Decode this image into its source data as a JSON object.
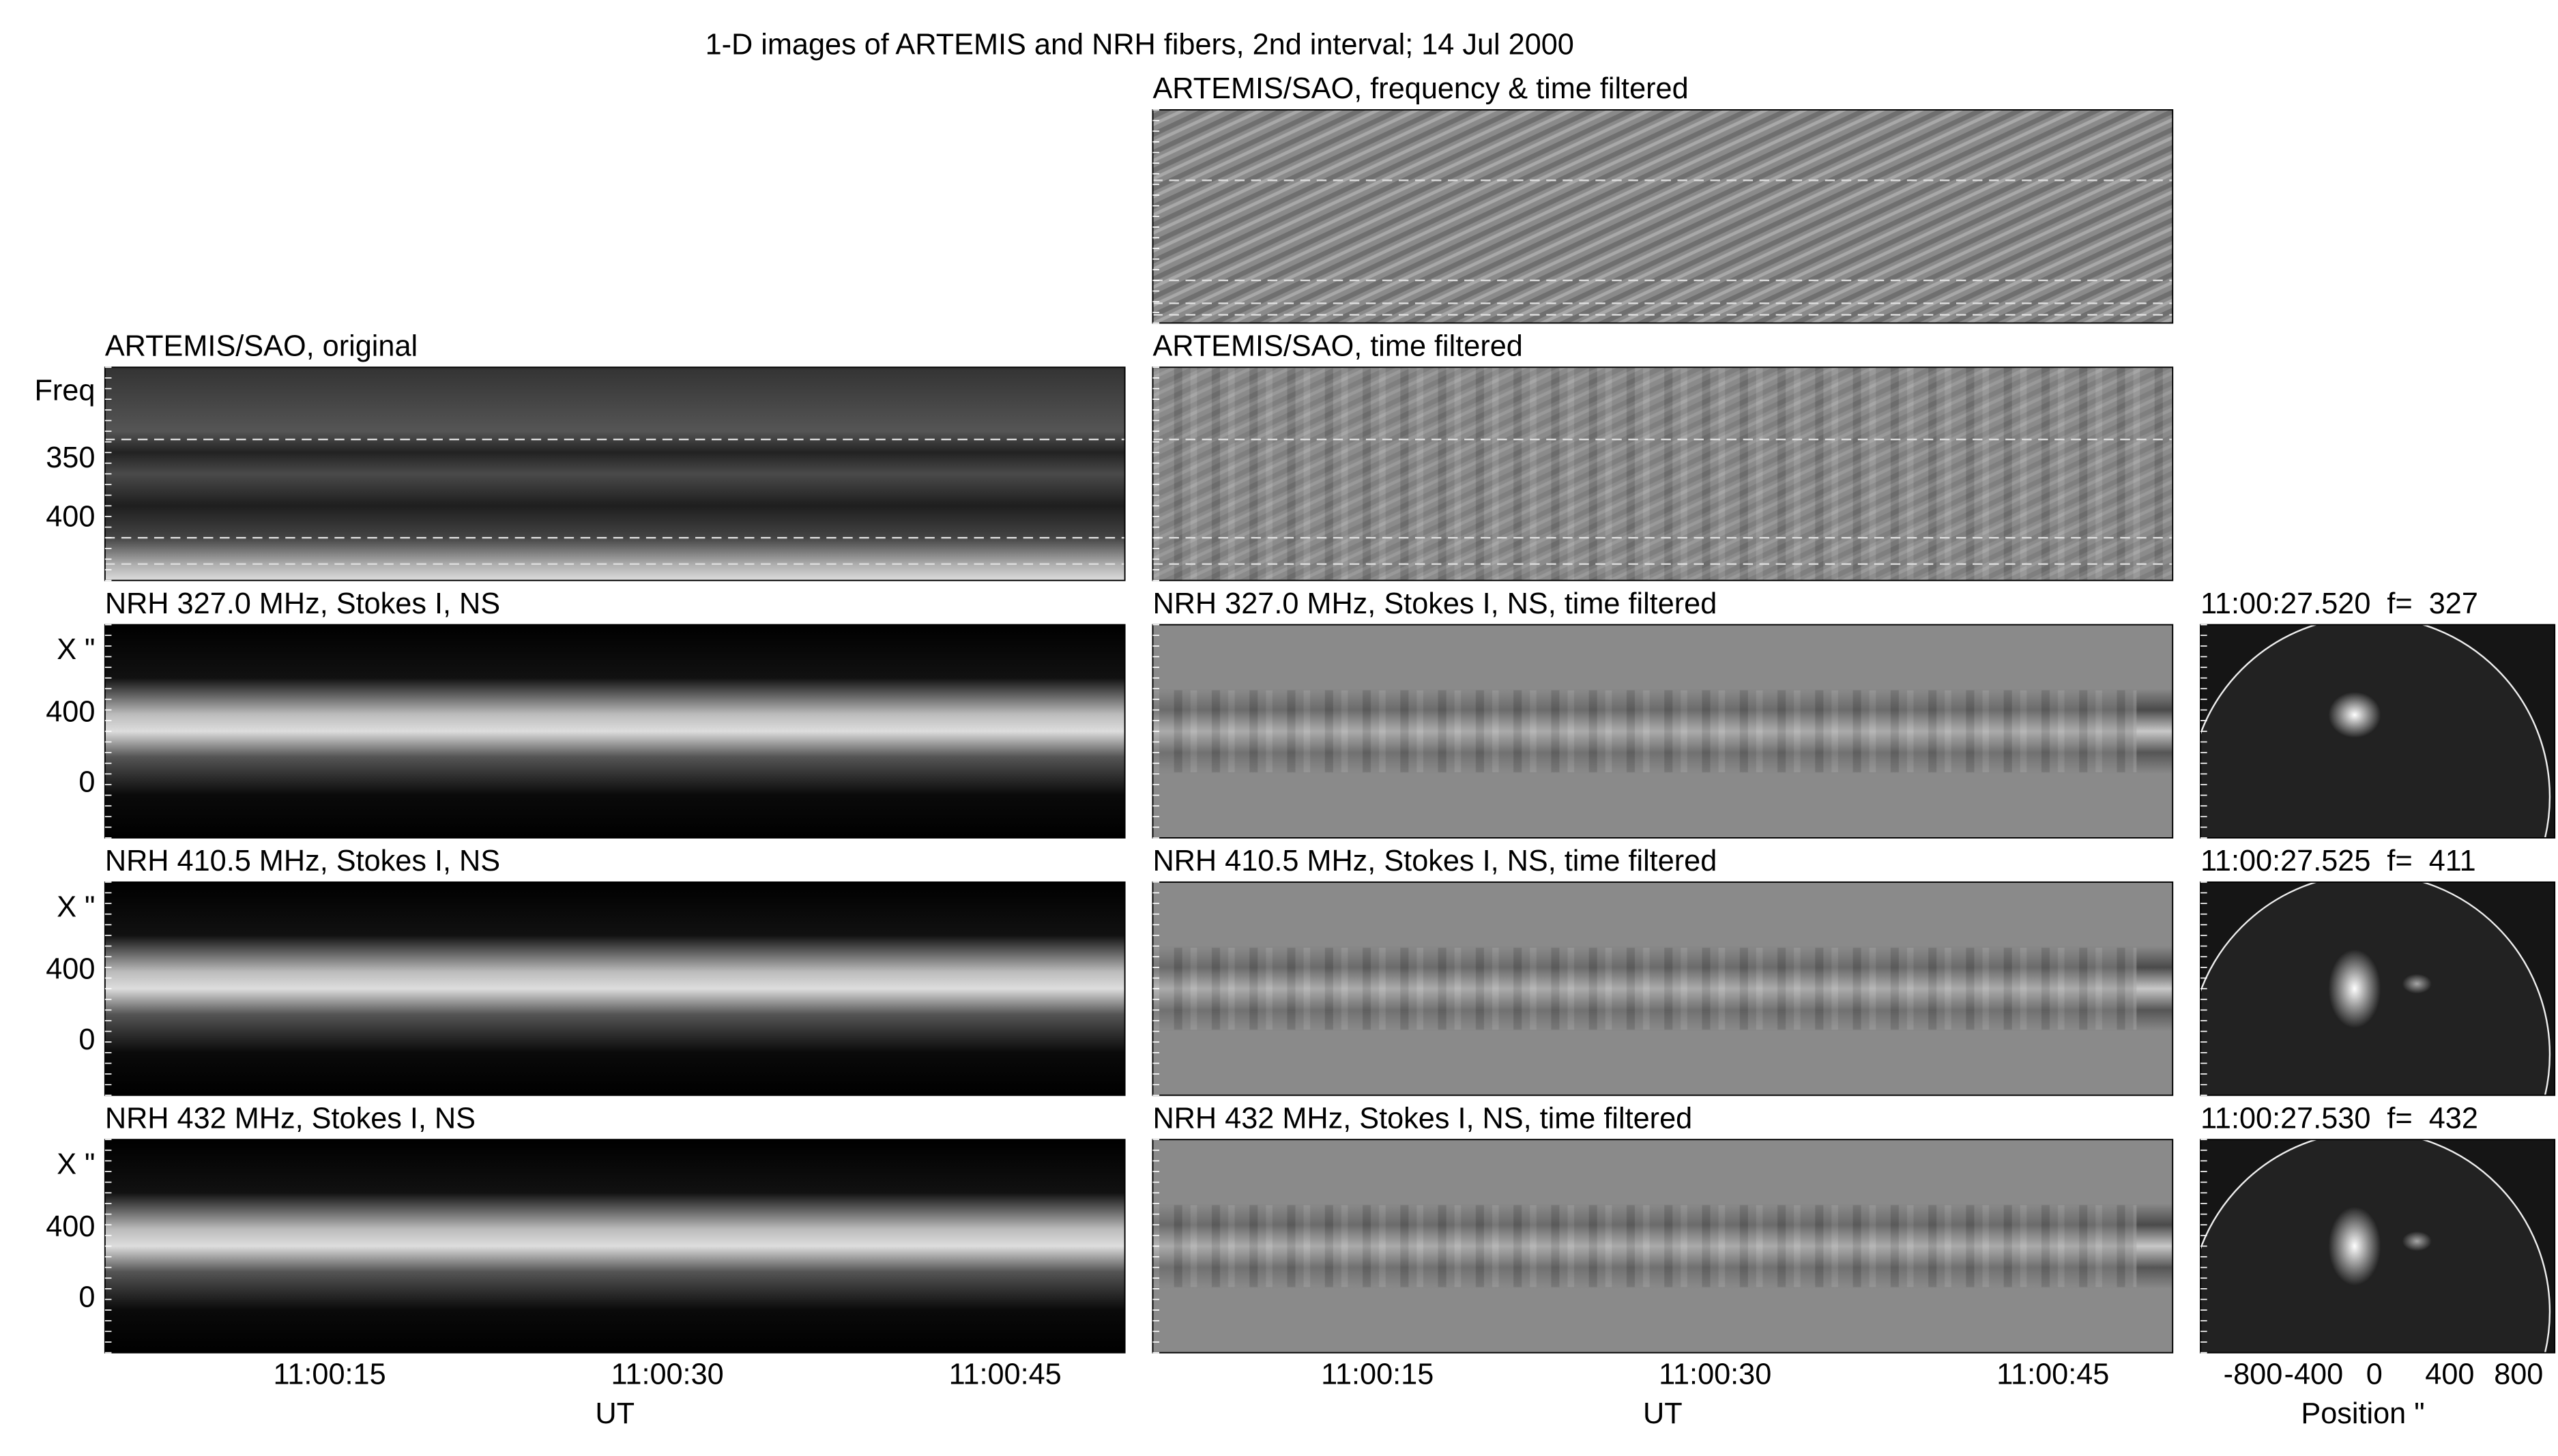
{
  "title": "1-D images of ARTEMIS and NRH fibers, 2nd interval; 14 Jul 2000",
  "top_panel": {
    "label": "ARTEMIS/SAO, frequency & time filtered"
  },
  "rows": [
    {
      "left": "ARTEMIS/SAO, original",
      "right": "ARTEMIS/SAO, time filtered",
      "y_label": "Freq",
      "y_ticks": [
        "350",
        "400"
      ]
    },
    {
      "left": "NRH 327.0 MHz, Stokes I, NS",
      "right": "NRH 327.0 MHz, Stokes I, NS, time filtered",
      "y_label": "X \"",
      "y_ticks": [
        "400",
        "0"
      ],
      "map_label": "11:00:27.520  f=  327"
    },
    {
      "left": "NRH 410.5 MHz, Stokes I, NS",
      "right": "NRH 410.5 MHz, Stokes I, NS, time filtered",
      "y_label": "X \"",
      "y_ticks": [
        "400",
        "0"
      ],
      "map_label": "11:00:27.525  f=  411"
    },
    {
      "left": "NRH 432 MHz, Stokes I, NS",
      "right": "NRH 432 MHz, Stokes I, NS, time filtered",
      "y_label": "X \"",
      "y_ticks": [
        "400",
        "0"
      ],
      "map_label": "11:00:27.530  f=  432"
    }
  ],
  "time_axes": [
    {
      "ticks": [
        "11:00:15",
        "11:00:30",
        "11:00:45"
      ],
      "label": "UT"
    },
    {
      "ticks": [
        "11:00:15",
        "11:00:30",
        "11:00:45"
      ],
      "label": "UT"
    }
  ],
  "map_axis": {
    "ticks": [
      "-800",
      "-400",
      "0",
      "400",
      "800"
    ],
    "label": "Position \""
  }
}
